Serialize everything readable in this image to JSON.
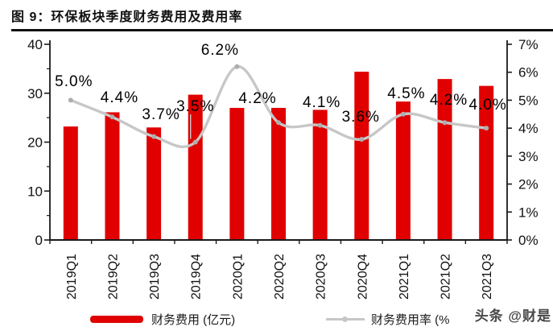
{
  "title": "图 9：环保板块季度财务费用及费用率",
  "watermark": "头条 @财是",
  "colors": {
    "bar": "#e00000",
    "line": "#c7c7c7",
    "marker": "#aeaeae",
    "axis": "#1a1a1a",
    "text": "#111111",
    "watermark": "#474747"
  },
  "legend": {
    "position": "bottom",
    "items": [
      {
        "label": "财务费用 (亿元)"
      },
      {
        "label": "财务费用率 (%"
      }
    ]
  },
  "chart_data": {
    "type": "bar",
    "subtype": "bar+line combo, dual axis",
    "title": "图 9：环保板块季度财务费用及费用率",
    "categories": [
      "2019Q1",
      "2019Q2",
      "2019Q3",
      "2019Q4",
      "2020Q1",
      "2020Q2",
      "2020Q3",
      "2020Q4",
      "2021Q1",
      "2021Q2",
      "2021Q3"
    ],
    "series": [
      {
        "name": "财务费用 (亿元)",
        "type": "bar",
        "axis": "left",
        "values": [
          23.2,
          26.1,
          23.0,
          29.7,
          27.0,
          27.0,
          26.6,
          34.4,
          28.3,
          32.9,
          31.5
        ]
      },
      {
        "name": "财务费用率 (%)",
        "type": "line",
        "axis": "right",
        "values": [
          5.0,
          4.4,
          3.7,
          3.5,
          6.2,
          4.2,
          4.1,
          3.6,
          4.5,
          4.2,
          4.0
        ],
        "point_labels": [
          "5.0%",
          "4.4%",
          "3.7%",
          "3.5%",
          "6.2%",
          "4.2%",
          "4.1%",
          "3.6%",
          "4.5%",
          "4.2%",
          "4.0%"
        ]
      }
    ],
    "left_axis": {
      "min": 0,
      "max": 40,
      "tick_labels": [
        "0",
        "10",
        "20",
        "30",
        "40"
      ],
      "minor_tick_interval": 5
    },
    "right_axis": {
      "min": 0,
      "max": 7,
      "tick_labels": [
        "0%",
        "1%",
        "2%",
        "3%",
        "4%",
        "5%",
        "6%",
        "7%"
      ]
    },
    "grid": false,
    "legend_position": "bottom",
    "label_layout": [
      {
        "dx": 4,
        "y": 107
      },
      {
        "dx": 9,
        "y": 127
      },
      {
        "dx": 9,
        "y": 148
      },
      {
        "dx": 0,
        "y": 138,
        "leader": true
      },
      {
        "dx": -21,
        "y": 68
      },
      {
        "dx": -26,
        "y": 128
      },
      {
        "dx": 2,
        "y": 133
      },
      {
        "dx": -1,
        "y": 151
      },
      {
        "dx": 4,
        "y": 122
      },
      {
        "dx": 5,
        "y": 130
      },
      {
        "dx": 2,
        "y": 136
      }
    ]
  }
}
